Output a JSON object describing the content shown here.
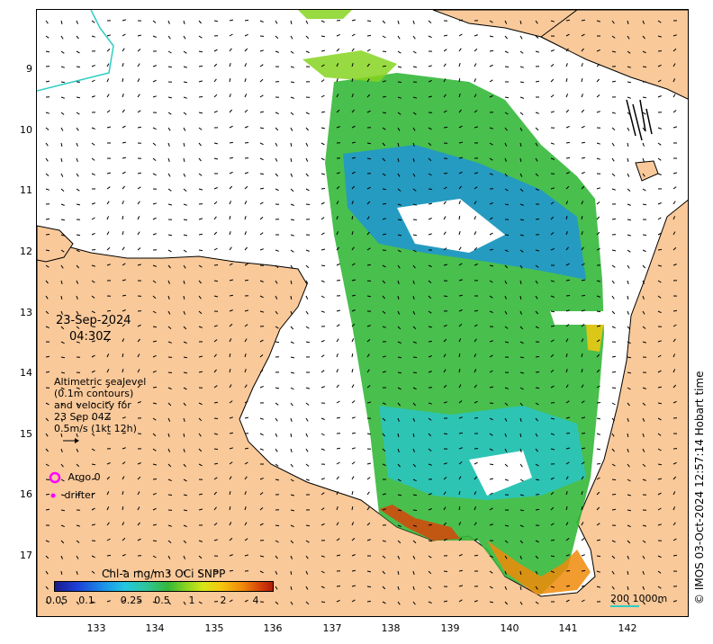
{
  "map": {
    "date": "23-Sep-2024",
    "time": "04:30Z",
    "lat_ticks": [
      "9",
      "10",
      "11",
      "12",
      "13",
      "14",
      "15",
      "16",
      "17"
    ],
    "lon_ticks": [
      "133",
      "134",
      "135",
      "136",
      "137",
      "138",
      "139",
      "140",
      "141",
      "142"
    ],
    "altimetry_text": [
      "Altimetric sealevel",
      "(0.1m contours)",
      "and velocity for",
      "23 Sep 04Z",
      "0.5m/s (1kt 12h)"
    ],
    "legend": {
      "argo_label": "Argo 0",
      "drifter_label": "drifter",
      "argo_color": "#ff00ff",
      "drifter_color": "#ff00ff"
    },
    "colorbar": {
      "title": "Chl-a mg/m3 OCi SNPP",
      "ticks": [
        "0.05",
        "0.1",
        "0.25",
        "0.5",
        "1",
        "2",
        "4"
      ]
    },
    "scalebar_label": "200  1000m",
    "copyright": "© IMOS 03-Oct-2024 12:57:14 Hobart time",
    "colors": {
      "land": "#f9c99a",
      "ocean_background": "#ffffff",
      "coastline": "#000000",
      "contour": "#2ecdc4",
      "chl_low": "#1a8fe8",
      "chl_mid": "#35b83a",
      "chl_high": "#d7440a"
    }
  }
}
